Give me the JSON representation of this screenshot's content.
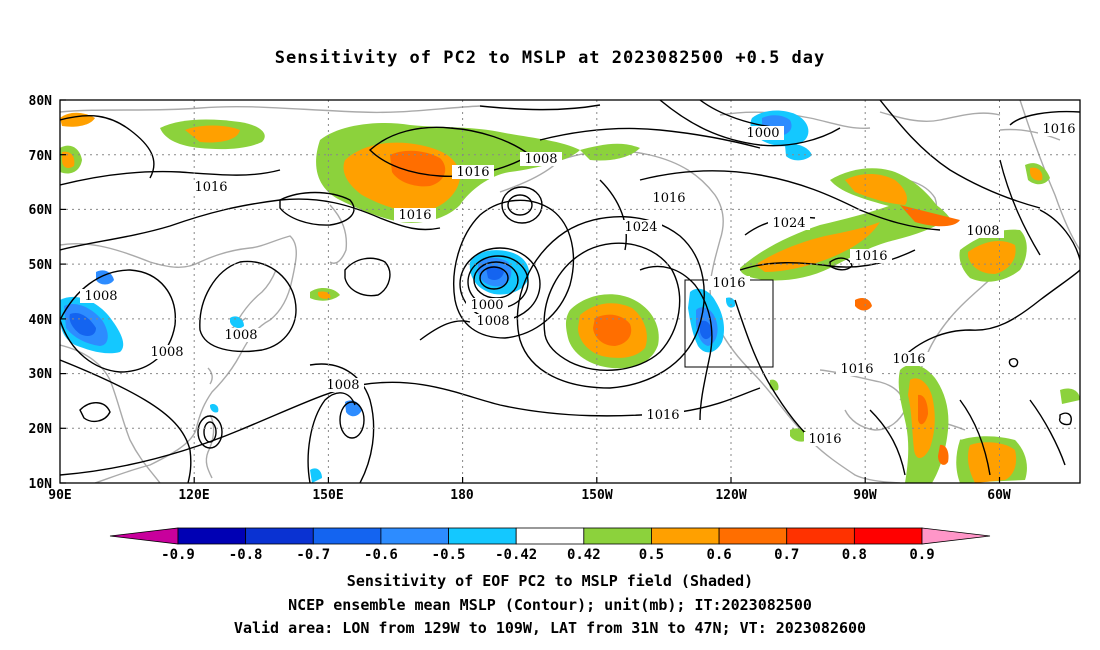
{
  "title": "Sensitivity of PC2 to MSLP at 2023082500 +0.5 day",
  "lat_ticks": [
    "80N",
    "70N",
    "60N",
    "50N",
    "40N",
    "30N",
    "20N",
    "10N"
  ],
  "lon_ticks": [
    "90E",
    "120E",
    "150E",
    "180",
    "150W",
    "120W",
    "90W",
    "60W"
  ],
  "contour_labels": {
    "c1000a": "1000",
    "c1000b": "1000",
    "c1008a": "1008",
    "c1008b": "1008",
    "c1008c": "1008",
    "c1008d": "1008",
    "c1008e": "1008",
    "c1008f": "1008",
    "c1008g": "1008",
    "c1016a": "1016",
    "c1016b": "1016",
    "c1016c": "1016",
    "c1016d": "1016",
    "c1016e": "1016",
    "c1016f": "1016",
    "c1016g": "1016",
    "c1016h": "1016",
    "c1016i": "1016",
    "c1016j": "1016",
    "c1016k": "1016",
    "c1024a": "1024",
    "c1024b": "1024"
  },
  "colorbar": {
    "labels": [
      "-0.9",
      "-0.8",
      "-0.7",
      "-0.6",
      "-0.5",
      "-0.42",
      "0.42",
      "0.5",
      "0.6",
      "0.7",
      "0.8",
      "0.9"
    ],
    "colors": [
      "#c8009c",
      "#0000b4",
      "#0a32d2",
      "#1464f0",
      "#2d8cff",
      "#14c8ff",
      "#ffffff",
      "#8cd23c",
      "#ffa000",
      "#ff6e00",
      "#ff3200",
      "#ff0000",
      "#ff96c8"
    ]
  },
  "caption": {
    "line1": "Sensitivity of EOF PC2 to MSLP field (Shaded)",
    "line2": "NCEP ensemble mean MSLP (Contour); unit(mb); IT:2023082500",
    "line3": "Valid area: LON from 129W to 109W, LAT from 31N to 47N; VT: 2023082600"
  },
  "valid_area": {
    "lon_min": -129,
    "lon_max": -109,
    "lat_min": 31,
    "lat_max": 47
  }
}
